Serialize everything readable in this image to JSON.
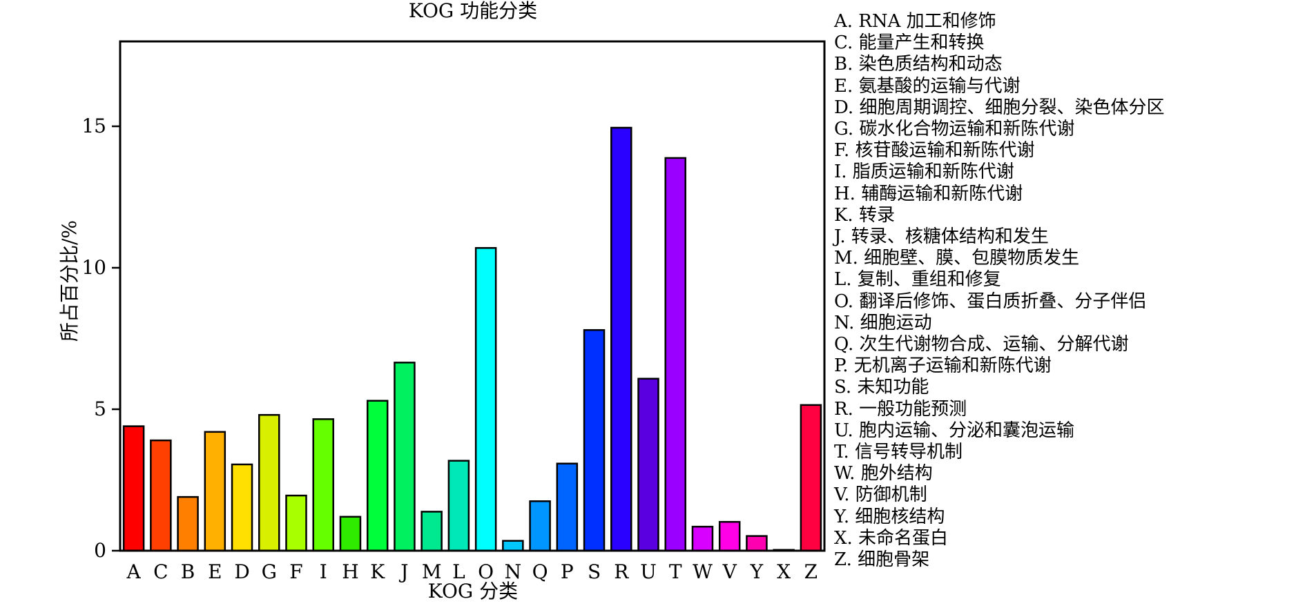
{
  "chart_data": {
    "type": "bar",
    "title": "KOG 功能分类",
    "xlabel": "KOG 分类",
    "ylabel": "所占百分比/%",
    "ylim": [
      0,
      18
    ],
    "yticks": [
      "0",
      "5",
      "10",
      "15"
    ],
    "grid": false,
    "legend_position": "right",
    "categories": [
      "A",
      "C",
      "B",
      "E",
      "D",
      "G",
      "F",
      "I",
      "H",
      "K",
      "J",
      "M",
      "L",
      "O",
      "N",
      "Q",
      "P",
      "S",
      "R",
      "U",
      "T",
      "W",
      "V",
      "Y",
      "X",
      "Z"
    ],
    "values": [
      4.4,
      3.9,
      1.9,
      4.2,
      3.05,
      4.8,
      1.95,
      4.65,
      1.2,
      5.3,
      6.65,
      1.38,
      3.18,
      10.7,
      0.35,
      1.75,
      3.08,
      7.8,
      14.95,
      6.08,
      13.88,
      0.85,
      1.02,
      0.52,
      0.03,
      5.15
    ],
    "colors": [
      "#FF0000",
      "#FF4000",
      "#FF8000",
      "#FFB000",
      "#FFE000",
      "#D8F000",
      "#A8FF00",
      "#66FF00",
      "#2EEB00",
      "#00FF3A",
      "#00F060",
      "#00E890",
      "#00E8B8",
      "#00FFFF",
      "#00C8FF",
      "#0096FF",
      "#0064FF",
      "#0030FF",
      "#2A00FF",
      "#5A00E0",
      "#9A00FF",
      "#D800FF",
      "#FF00E6",
      "#FF00B0",
      "#FF0080",
      "#FF0040"
    ],
    "legend": [
      "A. RNA 加工和修饰",
      "C. 能量产生和转换",
      "B. 染色质结构和动态",
      "E. 氨基酸的运输与代谢",
      "D. 细胞周期调控、细胞分裂、染色体分区",
      "G. 碳水化合物运输和新陈代谢",
      "F. 核苷酸运输和新陈代谢",
      "I. 脂质运输和新陈代谢",
      "H. 辅酶运输和新陈代谢",
      "K. 转录",
      "J. 转录、核糖体结构和发生",
      "M. 细胞壁、膜、包膜物质发生",
      "L. 复制、重组和修复",
      "O. 翻译后修饰、蛋白质折叠、分子伴侣",
      "N. 细胞运动",
      "Q. 次生代谢物合成、运输、分解代谢",
      "P. 无机离子运输和新陈代谢",
      "S. 未知功能",
      "R. 一般功能预测",
      "U. 胞内运输、分泌和囊泡运输",
      "T. 信号转导机制",
      "W. 胞外结构",
      "V. 防御机制",
      "Y. 细胞核结构",
      "X. 未命名蛋白",
      "Z. 细胞骨架"
    ]
  }
}
